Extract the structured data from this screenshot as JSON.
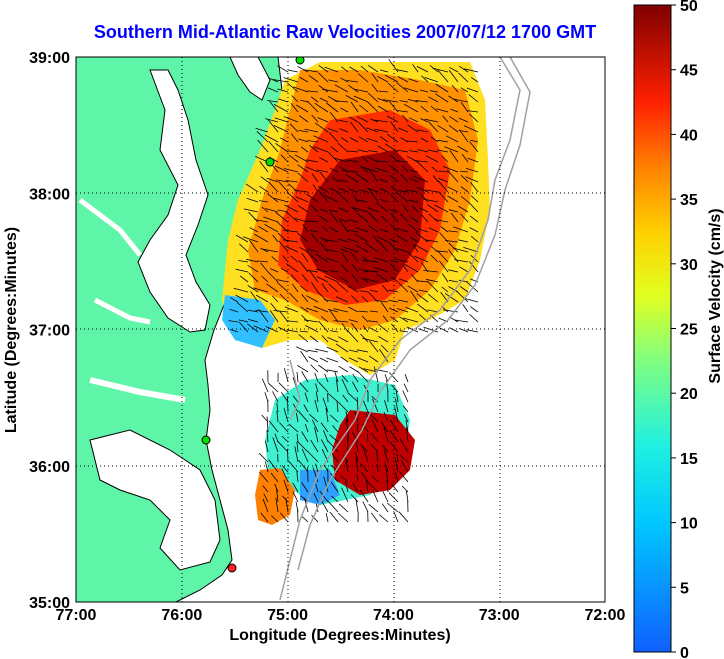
{
  "title": "Southern Mid-Atlantic Raw Velocities 2007/07/12 1700 GMT",
  "x_axis": {
    "label": "Longitude (Degrees:Minutes)",
    "ticks": [
      "77:00",
      "76:00",
      "75:00",
      "74:00",
      "73:00",
      "72:00"
    ],
    "range": [
      -77,
      -72
    ]
  },
  "y_axis": {
    "label": "Latitude (Degrees:Minutes)",
    "ticks": [
      "39:00",
      "38:00",
      "37:00",
      "36:00",
      "35:00"
    ],
    "range": [
      35,
      39
    ]
  },
  "colorbar": {
    "label": "Surface Velocity (cm/s)",
    "ticks": [
      "50",
      "45",
      "40",
      "35",
      "30",
      "25",
      "20",
      "15",
      "10",
      "5",
      "0"
    ],
    "range": [
      0,
      50
    ]
  },
  "colors": {
    "land": "#5ff5a8",
    "title": "#0000ff",
    "grid": "#000000",
    "station": "#00dd00",
    "station_alt": "#ff2020",
    "bathymetry": "#a0a0a0"
  },
  "grid": "dotted"
}
